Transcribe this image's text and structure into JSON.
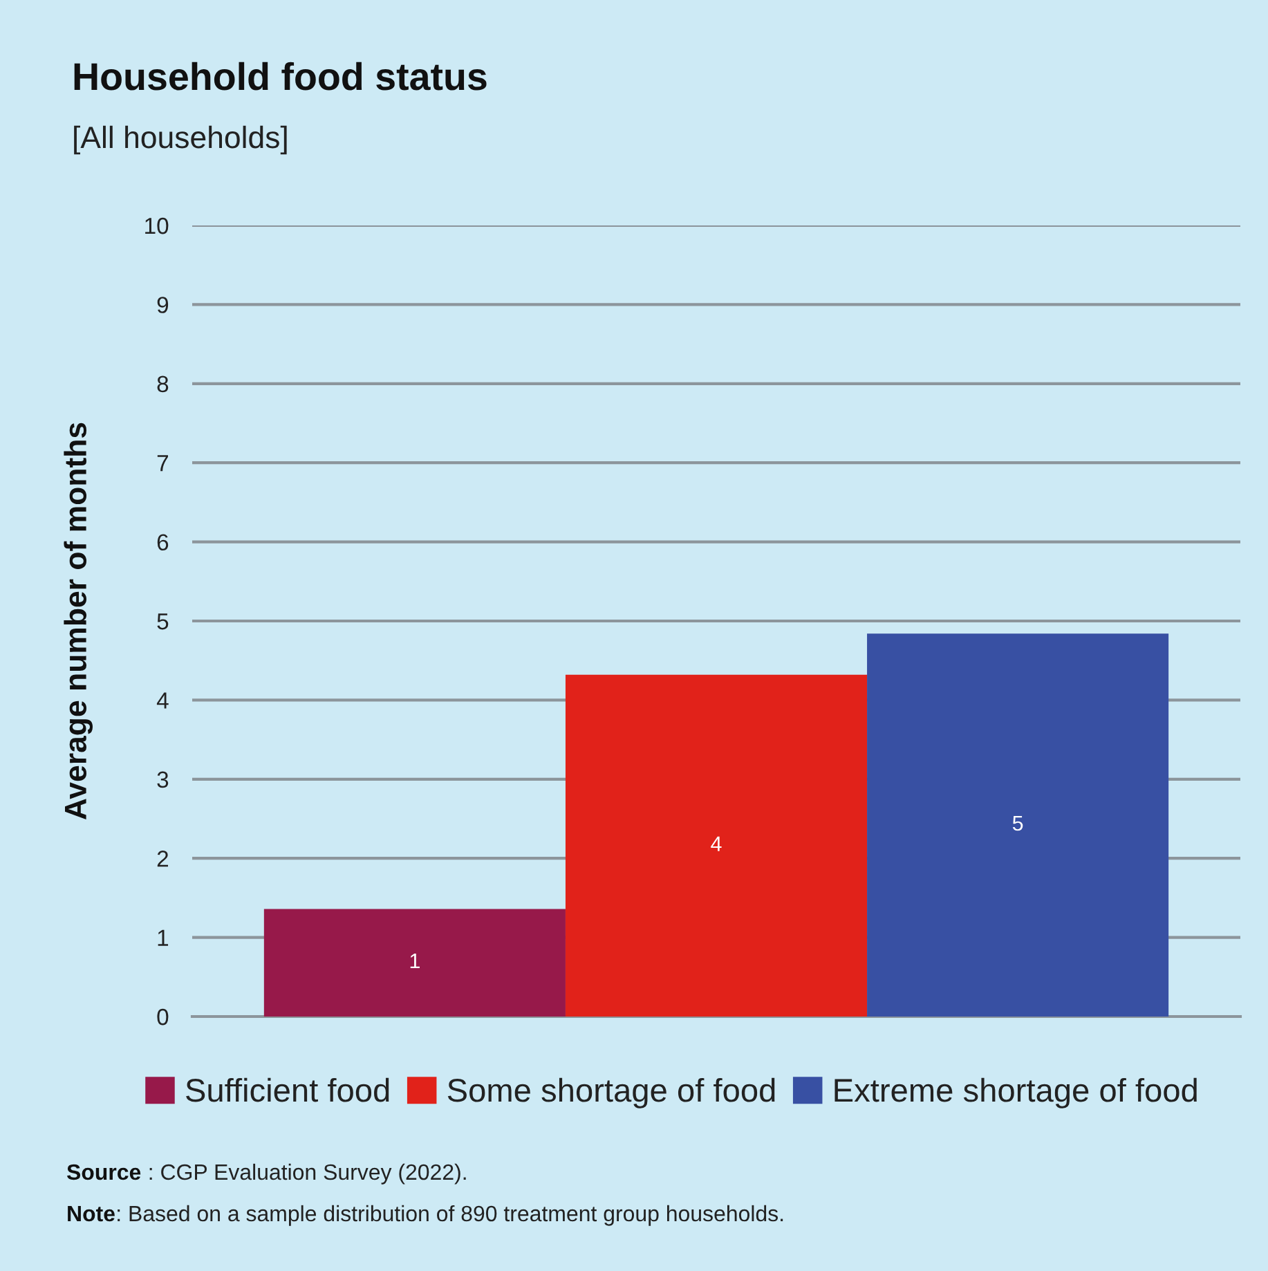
{
  "chart_data": {
    "type": "bar",
    "title": "Household food status",
    "subtitle": "[All households]",
    "ylabel": "Average number of months",
    "categories": [
      null
    ],
    "series": [
      {
        "name": "Sufficient food",
        "color": "#97194a",
        "values": [
          1.36
        ],
        "value_labels": [
          "1"
        ]
      },
      {
        "name": "Some shortage of food",
        "color": "#e1221a",
        "values": [
          4.32
        ],
        "value_labels": [
          "4"
        ]
      },
      {
        "name": "Extreme shortage of food",
        "color": "#3850a3",
        "values": [
          4.84
        ],
        "value_labels": [
          "5"
        ]
      }
    ],
    "ylim": [
      0,
      10
    ],
    "yticks": [
      0,
      1,
      2,
      3,
      4,
      5,
      6,
      7,
      8,
      9,
      10
    ],
    "grid": "y",
    "legend": "bottom",
    "tick_labels": "y",
    "annotations": [
      "Source : CGP Evaluation Survey (2022).",
      "Note: Based on a sample distribution of 890 treatment group households."
    ]
  }
}
